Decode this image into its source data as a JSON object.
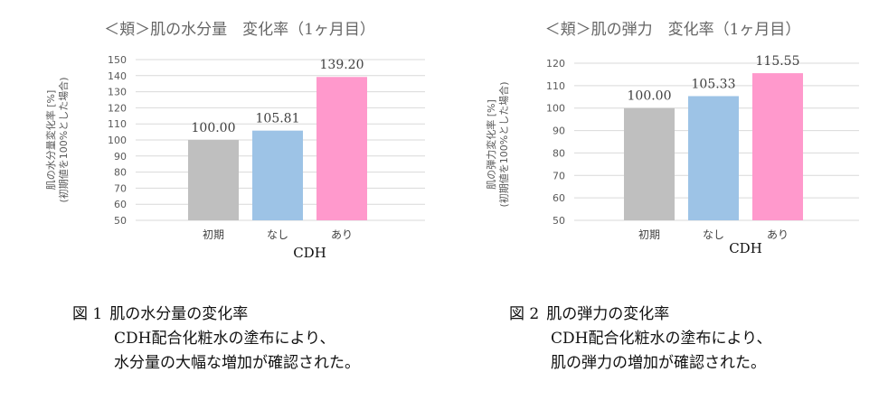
{
  "chart_data": [
    {
      "type": "bar",
      "title": "＜頬＞肌の水分量　変化率（1ヶ月目）",
      "ylabel_line1": "肌の水分量変化率 [%]",
      "ylabel_line2": "(初期値を100%とした場合)",
      "xlabel": "CDH",
      "categories": [
        "初期",
        "なし",
        "あり"
      ],
      "values": [
        100.0,
        105.81,
        139.2
      ],
      "value_labels": [
        "100.00",
        "105.81",
        "139.20"
      ],
      "colors": [
        "#bfbfbf",
        "#9dc3e6",
        "#ff99cc"
      ],
      "ylim": [
        50,
        150
      ],
      "yticks": [
        50,
        60,
        70,
        80,
        90,
        100,
        110,
        120,
        130,
        140,
        150
      ],
      "grid": true
    },
    {
      "type": "bar",
      "title": "＜頬＞肌の弾力　変化率（1ヶ月目）",
      "ylabel_line1": "肌の弾力変化率 [%]",
      "ylabel_line2": "(初期値を100%とした場合)",
      "xlabel": "CDH",
      "categories": [
        "初期",
        "なし",
        "あり"
      ],
      "values": [
        100.0,
        105.33,
        115.55
      ],
      "value_labels": [
        "100.00",
        "105.33",
        "115.55"
      ],
      "colors": [
        "#bfbfbf",
        "#9dc3e6",
        "#ff99cc"
      ],
      "ylim": [
        50,
        120
      ],
      "yticks": [
        50,
        60,
        70,
        80,
        90,
        100,
        110,
        120
      ],
      "grid": true
    }
  ],
  "captions": [
    {
      "number": "図 1",
      "title": "肌の水分量の変化率",
      "line2": "CDH配合化粧水の塗布により、",
      "line3": "水分量の大幅な増加が確認された。"
    },
    {
      "number": "図 2",
      "title": "肌の弾力の変化率",
      "line2": "CDH配合化粧水の塗布により、",
      "line3": "肌の弾力の増加が確認された。"
    }
  ]
}
